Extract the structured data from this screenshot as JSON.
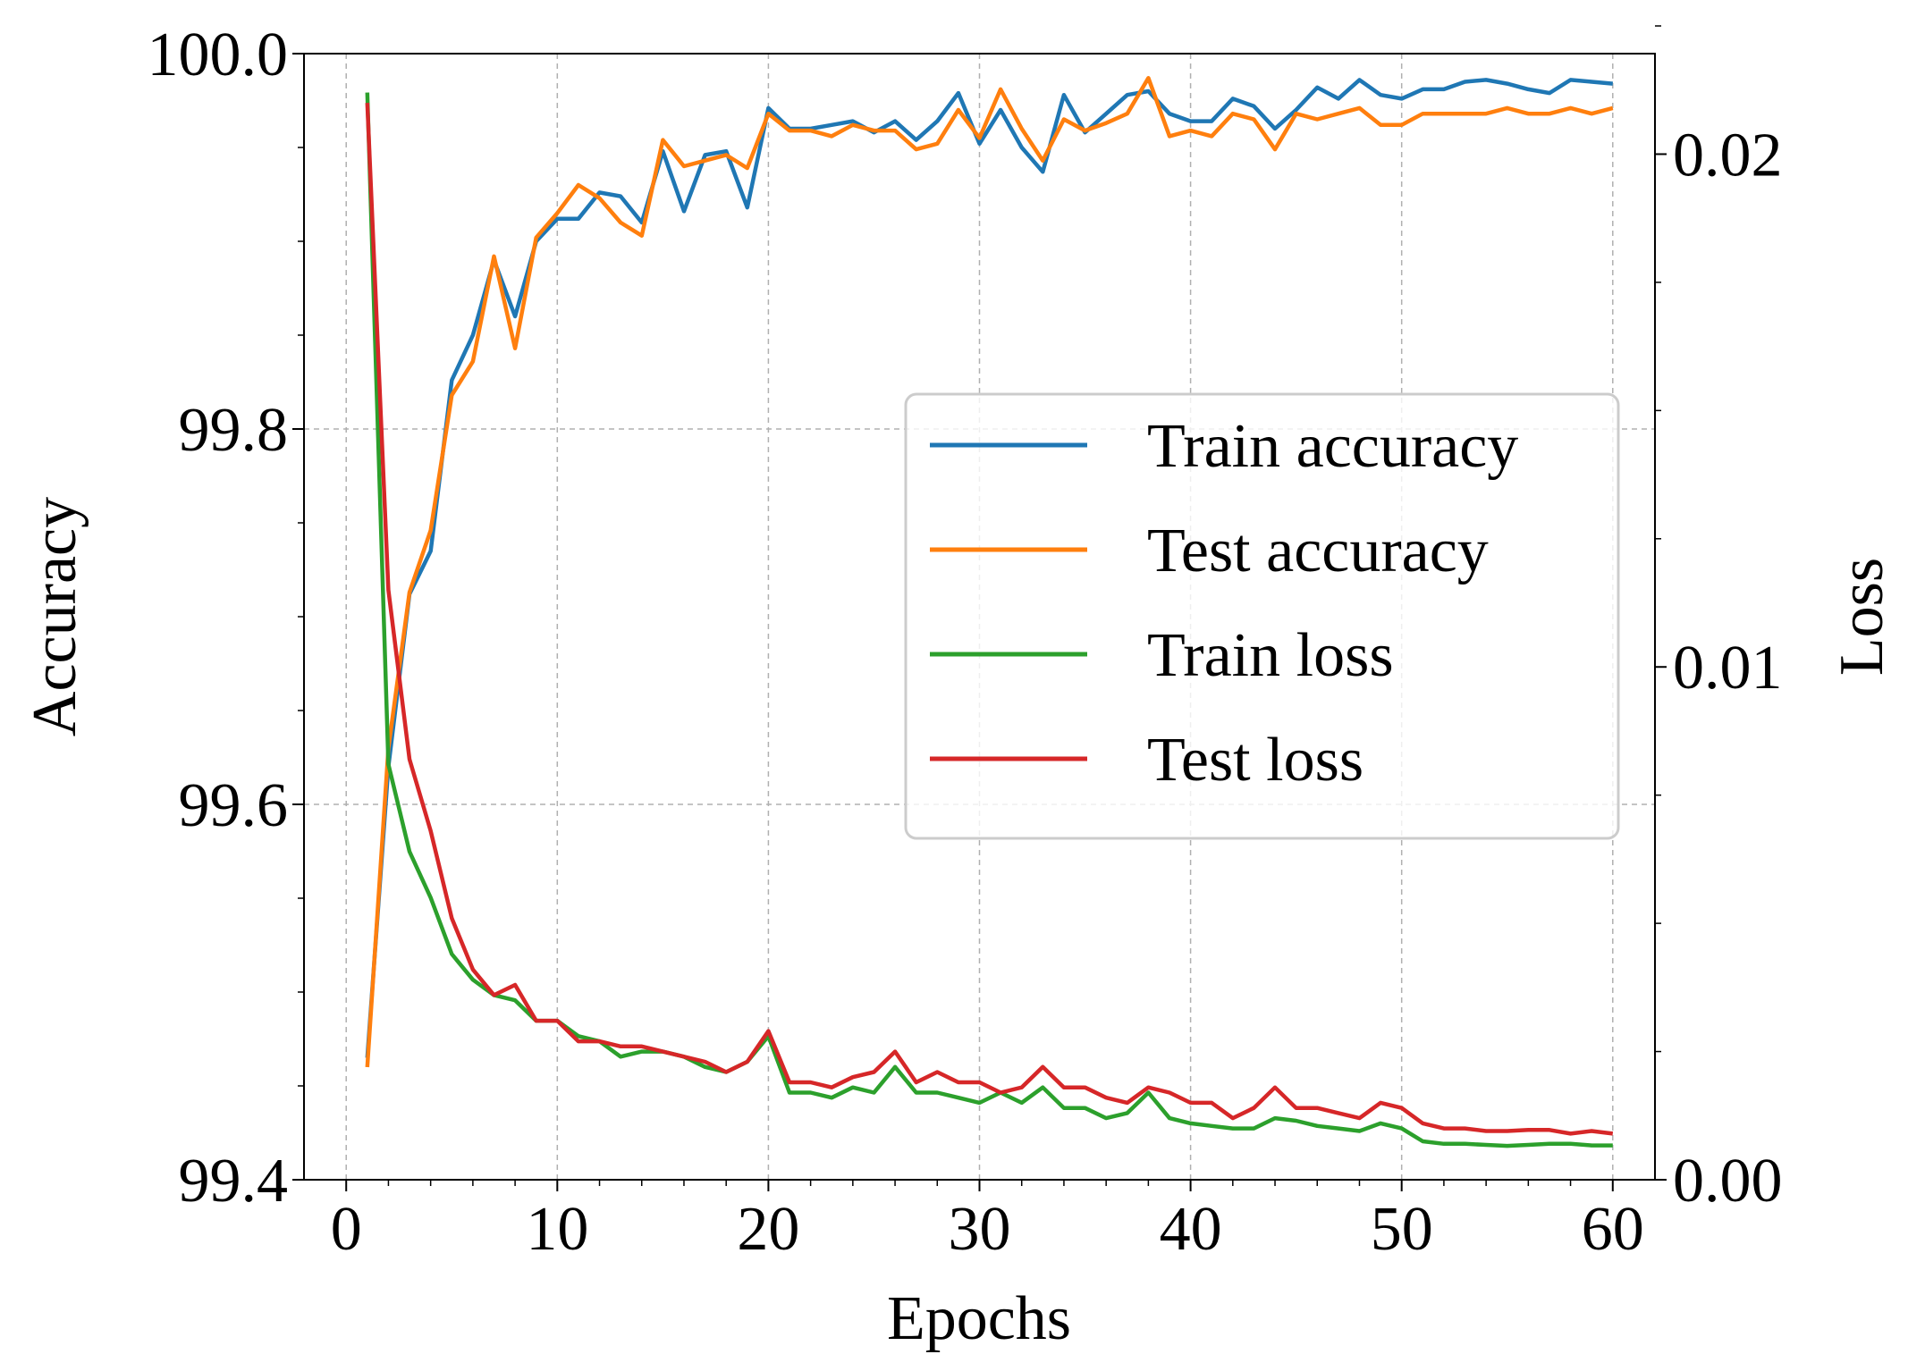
{
  "chart_data": {
    "type": "line",
    "title": "",
    "xlabel": "Epochs",
    "ylabel_left": "Accuracy",
    "ylabel_right": "Loss",
    "xlim": [
      -2,
      62
    ],
    "ylim_left": [
      99.4,
      100.0
    ],
    "ylim_right": [
      0.0,
      0.02196
    ],
    "xticks": [
      0,
      10,
      20,
      30,
      40,
      50,
      60
    ],
    "yticks_left": [
      99.4,
      99.6,
      99.8,
      100.0
    ],
    "ytick_labels_left": [
      "99.4",
      "99.6",
      "99.8",
      "100.0"
    ],
    "yticks_right": [
      0.0,
      0.01,
      0.02
    ],
    "ytick_labels_right": [
      "0.00",
      "0.01",
      "0.02"
    ],
    "grid": true,
    "legend_position": "center-right",
    "x": [
      1,
      2,
      3,
      4,
      5,
      6,
      7,
      8,
      9,
      10,
      11,
      12,
      13,
      14,
      15,
      16,
      17,
      18,
      19,
      20,
      21,
      22,
      23,
      24,
      25,
      26,
      27,
      28,
      29,
      30,
      31,
      32,
      33,
      34,
      35,
      36,
      37,
      38,
      39,
      40,
      41,
      42,
      43,
      44,
      45,
      46,
      47,
      48,
      49,
      50,
      51,
      52,
      53,
      54,
      55,
      56,
      57,
      58,
      59,
      60
    ],
    "series": [
      {
        "name": "Train accuracy",
        "axis": "left",
        "color": "#1f77b4",
        "values": [
          99.465,
          99.62,
          99.712,
          99.735,
          99.826,
          99.85,
          99.89,
          99.86,
          99.9,
          99.912,
          99.912,
          99.926,
          99.924,
          99.91,
          99.948,
          99.916,
          99.946,
          99.948,
          99.918,
          99.971,
          99.96,
          99.96,
          99.962,
          99.964,
          99.958,
          99.964,
          99.954,
          99.964,
          99.979,
          99.952,
          99.97,
          99.95,
          99.937,
          99.978,
          99.958,
          99.968,
          99.978,
          99.98,
          99.968,
          99.964,
          99.964,
          99.976,
          99.972,
          99.96,
          99.97,
          99.982,
          99.976,
          99.986,
          99.978,
          99.976,
          99.981,
          99.981,
          99.985,
          99.986,
          99.984,
          99.981,
          99.979,
          99.986,
          99.985,
          99.984
        ]
      },
      {
        "name": "Test accuracy",
        "axis": "left",
        "color": "#ff7f0e",
        "values": [
          99.46,
          99.63,
          99.713,
          99.746,
          99.818,
          99.836,
          99.892,
          99.843,
          99.902,
          99.915,
          99.93,
          99.923,
          99.91,
          99.903,
          99.954,
          99.94,
          99.943,
          99.946,
          99.939,
          99.968,
          99.959,
          99.959,
          99.956,
          99.962,
          99.959,
          99.959,
          99.949,
          99.952,
          99.97,
          99.955,
          99.981,
          99.96,
          99.943,
          99.965,
          99.959,
          99.963,
          99.968,
          99.987,
          99.956,
          99.959,
          99.956,
          99.968,
          99.965,
          99.949,
          99.968,
          99.965,
          99.968,
          99.971,
          99.962,
          99.962,
          99.968,
          99.968,
          99.968,
          99.968,
          99.971,
          99.968,
          99.968,
          99.971,
          99.968,
          99.971
        ]
      },
      {
        "name": "Train loss",
        "axis": "right",
        "color": "#2ca02c",
        "values": [
          0.0212,
          0.0081,
          0.0064,
          0.0055,
          0.0044,
          0.0039,
          0.0036,
          0.0035,
          0.0031,
          0.0031,
          0.0028,
          0.0027,
          0.0024,
          0.0025,
          0.0025,
          0.0024,
          0.0022,
          0.0021,
          0.0023,
          0.0028,
          0.0017,
          0.0017,
          0.0016,
          0.0018,
          0.0017,
          0.0022,
          0.0017,
          0.0017,
          0.0016,
          0.0015,
          0.0017,
          0.0015,
          0.0018,
          0.0014,
          0.0014,
          0.0012,
          0.0013,
          0.0017,
          0.0012,
          0.0011,
          0.00105,
          0.001,
          0.001,
          0.0012,
          0.00115,
          0.00105,
          0.001,
          0.00095,
          0.0011,
          0.001,
          0.00075,
          0.0007,
          0.0007,
          0.00068,
          0.00066,
          0.00068,
          0.0007,
          0.0007,
          0.00067,
          0.00067
        ]
      },
      {
        "name": "Test loss",
        "axis": "right",
        "color": "#d62728",
        "values": [
          0.021,
          0.0115,
          0.0082,
          0.0068,
          0.0051,
          0.0041,
          0.0036,
          0.0038,
          0.0031,
          0.0031,
          0.0027,
          0.0027,
          0.0026,
          0.0026,
          0.0025,
          0.0024,
          0.0023,
          0.0021,
          0.0023,
          0.0029,
          0.0019,
          0.0019,
          0.0018,
          0.002,
          0.0021,
          0.0025,
          0.0019,
          0.0021,
          0.0019,
          0.0019,
          0.0017,
          0.0018,
          0.0022,
          0.0018,
          0.0018,
          0.0016,
          0.0015,
          0.0018,
          0.0017,
          0.0015,
          0.0015,
          0.0012,
          0.0014,
          0.0018,
          0.0014,
          0.0014,
          0.0013,
          0.0012,
          0.0015,
          0.0014,
          0.0011,
          0.001,
          0.001,
          0.00095,
          0.00095,
          0.00097,
          0.00097,
          0.0009,
          0.00095,
          0.0009
        ]
      }
    ]
  }
}
